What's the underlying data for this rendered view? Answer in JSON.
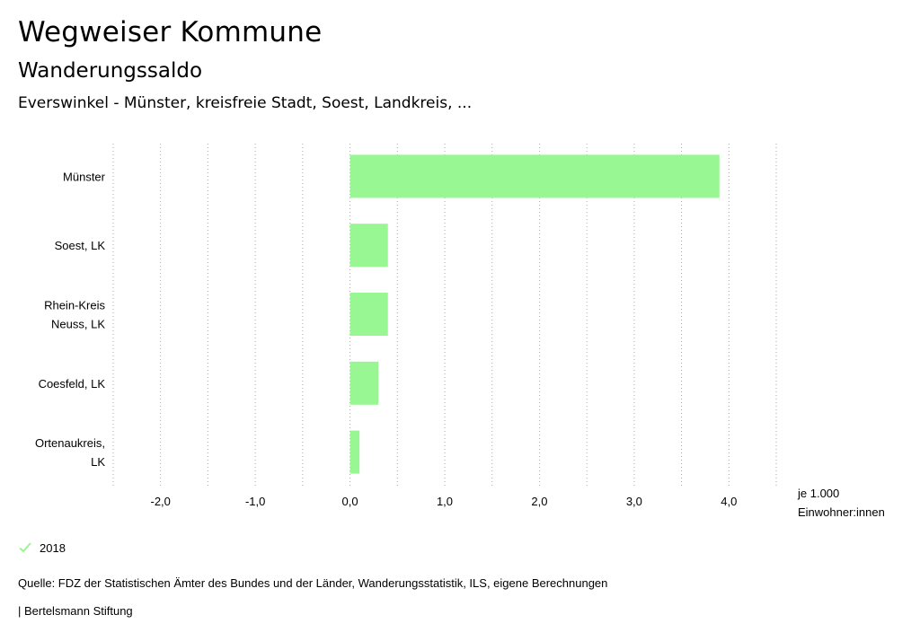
{
  "header": {
    "title": "Wegweiser Kommune",
    "subtitle": "Wanderungssaldo",
    "region": "Everswinkel - Münster, kreisfreie Stadt, Soest, Landkreis, ..."
  },
  "chart_data": {
    "type": "bar",
    "orientation": "horizontal",
    "categories": [
      [
        "Münster"
      ],
      [
        "Soest, LK"
      ],
      [
        "Rhein-Kreis",
        "Neuss, LK"
      ],
      [
        "Coesfeld, LK"
      ],
      [
        "Ortenaukreis,",
        "LK"
      ]
    ],
    "series": [
      {
        "name": "2018",
        "values": [
          3.9,
          0.4,
          0.4,
          0.3,
          0.1
        ]
      }
    ],
    "xlim": [
      -2.5,
      4.5
    ],
    "xticks": [
      -2.0,
      -1.0,
      0.0,
      1.0,
      2.0,
      3.0,
      4.0
    ],
    "xtick_labels": [
      "-2,0",
      "-1,0",
      "0,0",
      "1,0",
      "2,0",
      "3,0",
      "4,0"
    ],
    "unit_label": [
      "je 1.000",
      "Einwohner:innen"
    ],
    "grid": true,
    "bar_color": "#98f792",
    "grid_color": "#aaaaaa"
  },
  "legend": {
    "label": "2018",
    "icon": "check-icon",
    "color": "#98f792"
  },
  "footer": {
    "source": "Quelle: FDZ der Statistischen Ämter des Bundes und der Länder, Wanderungsstatistik, ILS, eigene Berechnungen",
    "publisher": "| Bertelsmann Stiftung"
  }
}
